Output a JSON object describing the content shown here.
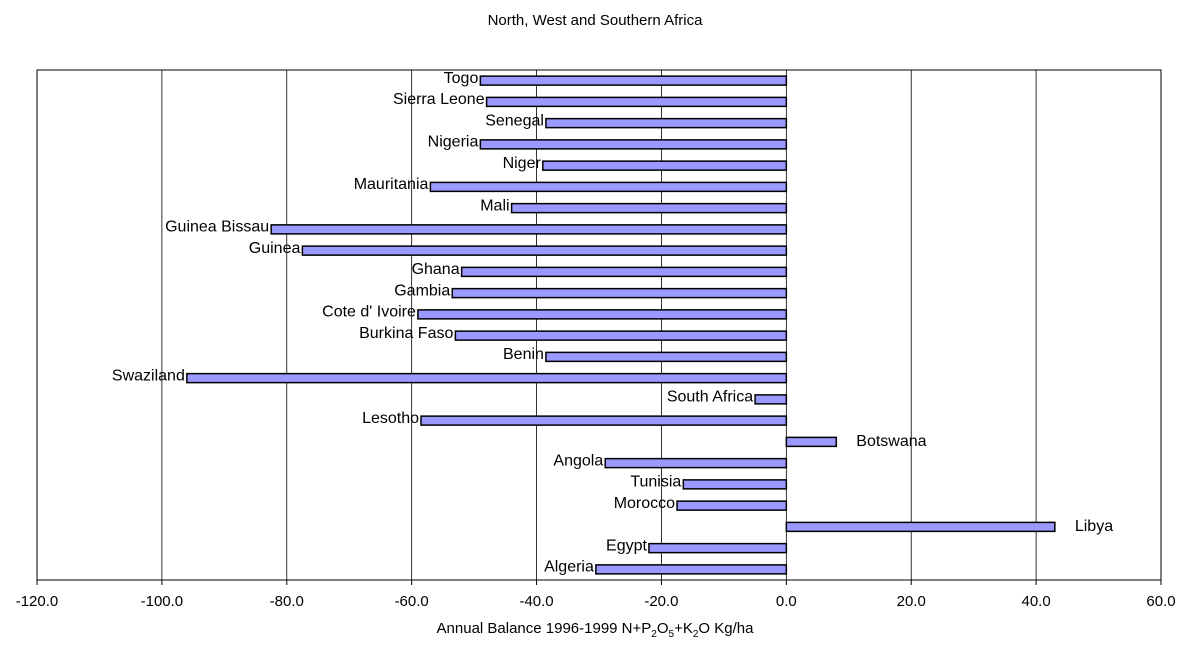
{
  "chart_data": {
    "type": "bar",
    "orientation": "horizontal",
    "title": "North, West and Southern Africa",
    "xlabel_parts": {
      "prefix": "Annual Balance 1996-1999 N+P",
      "sub1": "2",
      "mid1": "O",
      "sub2": "5",
      "mid2": "+K",
      "sub3": "2",
      "suffix": "O Kg/ha"
    },
    "xlim": [
      -120,
      60
    ],
    "xticks": [
      -120,
      -100,
      -80,
      -60,
      -40,
      -20,
      0,
      20,
      40,
      60
    ],
    "xtick_labels": [
      "-120.0",
      "-100.0",
      "-80.0",
      "-60.0",
      "-40.0",
      "-20.0",
      "0.0",
      "20.0",
      "40.0",
      "60.0"
    ],
    "grid": "vertical",
    "bar_color": "#9999ff",
    "categories": [
      "Togo",
      "Sierra Leone",
      "Senegal",
      "Nigeria",
      "Niger",
      "Mauritania",
      "Mali",
      "Guinea Bissau",
      "Guinea",
      "Ghana",
      "Gambia",
      "Cote d' Ivoire",
      "Burkina Faso",
      "Benin",
      "Swaziland",
      "South Africa",
      "Lesotho",
      "Botswana",
      "Angola",
      "Tunisia",
      "Morocco",
      "Libya",
      "Egypt",
      "Algeria"
    ],
    "values": [
      -49,
      -48,
      -38.5,
      -49,
      -39,
      -57,
      -44,
      -82.5,
      -77.5,
      -52,
      -53.5,
      -59,
      -53,
      -38.5,
      -96,
      -5,
      -58.5,
      8,
      -29,
      -16.5,
      -17.5,
      43,
      -22,
      -30.5
    ]
  }
}
